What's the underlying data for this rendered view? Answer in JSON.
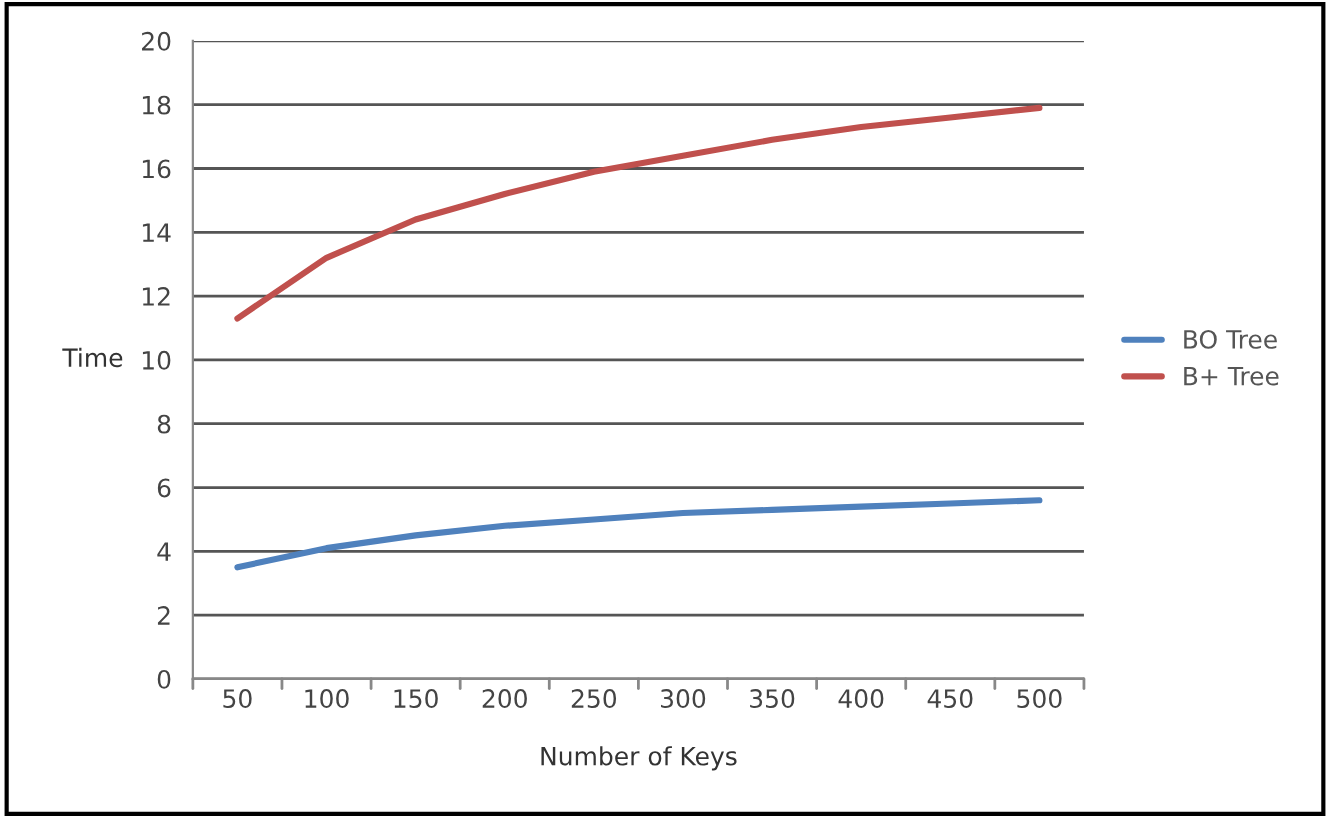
{
  "chart_data": {
    "type": "line",
    "xlabel": "Number of Keys",
    "ylabel": "Time",
    "categories": [
      "50",
      "100",
      "150",
      "200",
      "250",
      "300",
      "350",
      "400",
      "450",
      "500"
    ],
    "series": [
      {
        "name": "BO Tree",
        "color": "#4f81bd",
        "values": [
          3.5,
          4.1,
          4.5,
          4.8,
          5.0,
          5.2,
          5.3,
          5.4,
          5.5,
          5.6
        ]
      },
      {
        "name": "B+ Tree",
        "color": "#c0504d",
        "values": [
          11.3,
          13.2,
          14.4,
          15.2,
          15.9,
          16.4,
          16.9,
          17.3,
          17.6,
          17.9
        ]
      }
    ],
    "ylim": [
      0,
      20
    ],
    "yticks": [
      0,
      2,
      4,
      6,
      8,
      10,
      12,
      14,
      16,
      18,
      20
    ],
    "grid": "y",
    "legend": "right",
    "marker": "none",
    "line_style": "solid"
  }
}
